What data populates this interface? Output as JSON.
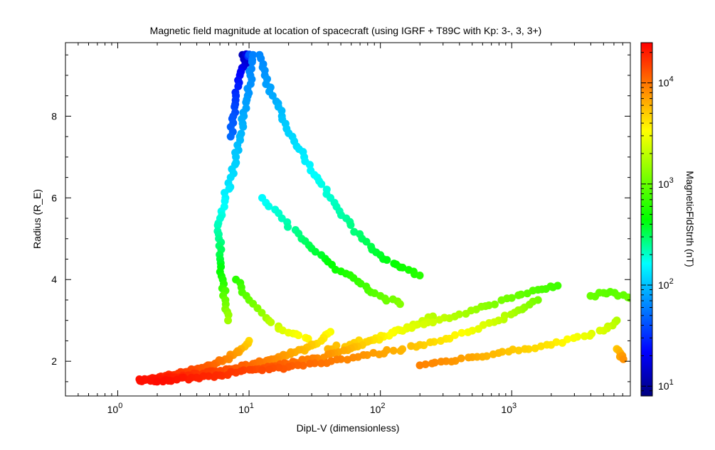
{
  "chart_data": {
    "type": "scatter",
    "title": "Magnetic field magnitude at location of spacecraft (using IGRF + T89C with Kp: 3-, 3, 3+)",
    "xlabel": "DipL-V (dimensionless)",
    "ylabel": "Radius (R_E)",
    "colorbar_label": "MagneticFldStrth (nT)",
    "x_scale": "log",
    "xlim": [
      0.4,
      8.0
    ],
    "x_ticks": [
      {
        "base": "10",
        "exp": "0",
        "value": 1
      },
      {
        "base": "10",
        "exp": "1",
        "value": 10
      },
      {
        "base": "10",
        "exp": "2",
        "value": 100
      },
      {
        "base": "10",
        "exp": "3",
        "value": 1000
      }
    ],
    "ylim": [
      1.15,
      9.8
    ],
    "y_ticks": [
      {
        "label": "2",
        "value": 2
      },
      {
        "label": "4",
        "value": 4
      },
      {
        "label": "6",
        "value": 6
      },
      {
        "label": "8",
        "value": 8
      }
    ],
    "c_scale": "log",
    "clim": [
      8,
      25000
    ],
    "c_ticks": [
      {
        "base": "10",
        "exp": "1",
        "value": 10
      },
      {
        "base": "10",
        "exp": "2",
        "value": 100
      },
      {
        "base": "10",
        "exp": "3",
        "value": 1000
      },
      {
        "base": "10",
        "exp": "4",
        "value": 10000
      }
    ],
    "colormap": [
      "#00007f",
      "#0000ff",
      "#007fff",
      "#00ffff",
      "#00ff00",
      "#7fff00",
      "#ffff00",
      "#ff7f00",
      "#ff0000"
    ],
    "grid": false,
    "series": [
      {
        "points_log10x_radius_log10B": [
          [
            0.17,
            1.52,
            4.35
          ],
          [
            0.22,
            1.55,
            4.33
          ],
          [
            0.28,
            1.58,
            4.3
          ],
          [
            0.34,
            1.62,
            4.27
          ],
          [
            0.4,
            1.66,
            4.24
          ],
          [
            0.46,
            1.7,
            4.2
          ],
          [
            0.52,
            1.74,
            4.17
          ],
          [
            0.58,
            1.79,
            4.13
          ],
          [
            0.64,
            1.84,
            4.09
          ],
          [
            0.7,
            1.9,
            4.05
          ],
          [
            0.76,
            1.97,
            4.0
          ],
          [
            0.82,
            2.05,
            3.94
          ],
          [
            0.88,
            2.15,
            3.87
          ],
          [
            0.94,
            2.3,
            3.78
          ],
          [
            1.0,
            2.5,
            3.65
          ],
          [
            0.25,
            1.52,
            4.35
          ],
          [
            0.35,
            1.56,
            4.32
          ],
          [
            0.45,
            1.6,
            4.28
          ],
          [
            0.55,
            1.65,
            4.24
          ],
          [
            0.65,
            1.7,
            4.2
          ],
          [
            0.75,
            1.75,
            4.16
          ],
          [
            0.85,
            1.81,
            4.11
          ],
          [
            0.95,
            1.87,
            4.06
          ],
          [
            1.05,
            1.95,
            4.0
          ],
          [
            1.15,
            2.03,
            3.94
          ],
          [
            1.25,
            2.12,
            3.87
          ],
          [
            1.35,
            2.22,
            3.8
          ],
          [
            1.45,
            2.35,
            3.72
          ],
          [
            1.55,
            2.5,
            3.62
          ],
          [
            1.62,
            2.72,
            3.5
          ],
          [
            0.3,
            1.5,
            4.36
          ],
          [
            0.45,
            1.55,
            4.33
          ],
          [
            0.6,
            1.6,
            4.29
          ],
          [
            0.75,
            1.66,
            4.25
          ],
          [
            0.9,
            1.72,
            4.2
          ],
          [
            1.05,
            1.8,
            4.14
          ],
          [
            1.2,
            1.88,
            4.08
          ],
          [
            1.35,
            1.97,
            4.01
          ],
          [
            1.5,
            2.07,
            3.94
          ],
          [
            1.65,
            2.2,
            3.85
          ],
          [
            1.8,
            2.35,
            3.75
          ],
          [
            1.95,
            2.52,
            3.62
          ],
          [
            2.1,
            2.7,
            3.5
          ],
          [
            2.25,
            2.9,
            3.38
          ],
          [
            2.4,
            3.1,
            3.27
          ],
          [
            1.1,
            1.78,
            4.15
          ],
          [
            1.3,
            1.86,
            4.09
          ],
          [
            1.5,
            1.95,
            4.02
          ],
          [
            1.7,
            2.05,
            3.95
          ],
          [
            1.9,
            2.15,
            3.87
          ],
          [
            2.1,
            2.26,
            3.8
          ],
          [
            2.3,
            2.4,
            3.7
          ],
          [
            2.5,
            2.55,
            3.6
          ],
          [
            2.7,
            2.75,
            3.47
          ],
          [
            2.9,
            3.0,
            3.32
          ],
          [
            3.05,
            3.25,
            3.18
          ],
          [
            3.2,
            3.5,
            3.05
          ],
          [
            1.6,
            2.3,
            3.78
          ],
          [
            1.8,
            2.45,
            3.68
          ],
          [
            2.0,
            2.6,
            3.57
          ],
          [
            2.2,
            2.8,
            3.44
          ],
          [
            2.4,
            2.95,
            3.35
          ],
          [
            2.6,
            3.15,
            3.23
          ],
          [
            2.8,
            3.35,
            3.12
          ],
          [
            3.0,
            3.55,
            3.02
          ],
          [
            3.2,
            3.75,
            2.92
          ],
          [
            3.35,
            3.85,
            2.86
          ],
          [
            2.3,
            1.9,
            3.95
          ],
          [
            2.5,
            2.0,
            3.9
          ],
          [
            2.7,
            2.1,
            3.82
          ],
          [
            2.9,
            2.2,
            3.75
          ],
          [
            3.1,
            2.3,
            3.68
          ],
          [
            3.3,
            2.4,
            3.6
          ],
          [
            3.5,
            2.6,
            3.48
          ],
          [
            3.7,
            2.75,
            3.38
          ],
          [
            3.8,
            3.0,
            3.25
          ],
          [
            3.85,
            2.05,
            3.9
          ],
          [
            3.8,
            2.3,
            3.72
          ],
          [
            3.6,
            3.6,
            3.0
          ],
          [
            3.75,
            3.7,
            2.95
          ],
          [
            3.9,
            3.55,
            3.02
          ],
          [
            0.84,
            3.0,
            3.2
          ],
          [
            0.82,
            3.5,
            3.0
          ],
          [
            0.8,
            4.0,
            2.75
          ],
          [
            0.78,
            4.5,
            2.55
          ],
          [
            0.77,
            5.0,
            2.4
          ],
          [
            0.78,
            5.5,
            2.28
          ],
          [
            0.82,
            6.0,
            2.18
          ],
          [
            0.86,
            6.5,
            2.1
          ],
          [
            0.9,
            7.0,
            2.03
          ],
          [
            0.93,
            7.5,
            1.97
          ],
          [
            0.96,
            8.0,
            1.92
          ],
          [
            0.99,
            8.5,
            1.86
          ],
          [
            1.01,
            9.0,
            1.82
          ],
          [
            1.03,
            9.5,
            1.78
          ],
          [
            0.95,
            9.5,
            1.1
          ],
          [
            0.98,
            9.3,
            1.2
          ],
          [
            0.93,
            9.0,
            1.35
          ],
          [
            0.9,
            8.5,
            1.5
          ],
          [
            0.88,
            8.0,
            1.62
          ],
          [
            0.86,
            7.5,
            1.7
          ],
          [
            1.08,
            9.5,
            1.8
          ],
          [
            1.12,
            9.0,
            1.85
          ],
          [
            1.18,
            8.5,
            1.92
          ],
          [
            1.25,
            8.0,
            2.0
          ],
          [
            1.33,
            7.5,
            2.08
          ],
          [
            1.42,
            7.0,
            2.15
          ],
          [
            1.52,
            6.5,
            2.22
          ],
          [
            1.62,
            6.0,
            2.3
          ],
          [
            1.74,
            5.5,
            2.38
          ],
          [
            1.86,
            5.0,
            2.48
          ],
          [
            2.0,
            4.6,
            2.58
          ],
          [
            2.15,
            4.3,
            2.68
          ],
          [
            2.3,
            4.1,
            2.78
          ],
          [
            1.1,
            6.0,
            2.2
          ],
          [
            1.25,
            5.5,
            2.32
          ],
          [
            1.4,
            5.0,
            2.45
          ],
          [
            1.55,
            4.6,
            2.58
          ],
          [
            1.7,
            4.2,
            2.72
          ],
          [
            1.85,
            3.9,
            2.85
          ],
          [
            2.0,
            3.6,
            2.98
          ],
          [
            2.15,
            3.4,
            3.1
          ],
          [
            0.9,
            4.0,
            2.8
          ],
          [
            1.0,
            3.5,
            3.0
          ],
          [
            1.15,
            3.0,
            3.25
          ],
          [
            1.3,
            2.7,
            3.45
          ],
          [
            1.45,
            2.55,
            3.55
          ]
        ]
      }
    ]
  }
}
